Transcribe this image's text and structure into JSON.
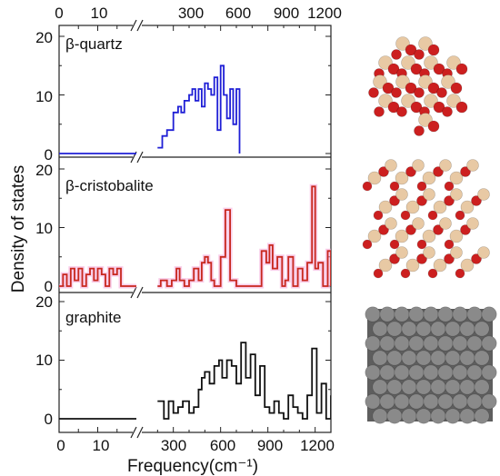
{
  "figure": {
    "ylabel": "Density of states",
    "xlabel": "Frequency(cm⁻¹)",
    "top_ticks_low": [
      "0",
      "10"
    ],
    "top_ticks_high": [
      "300",
      "600",
      "900",
      "1200"
    ],
    "bottom_ticks_low": [
      "0",
      "10"
    ],
    "bottom_ticks_high": [
      "300",
      "600",
      "900",
      "1200"
    ],
    "y_ticks": [
      "0",
      "10",
      "20"
    ]
  },
  "colors": {
    "beta_quartz": "#1f1fd6",
    "beta_cristobalite": "#c8281e",
    "beta_cristobalite_glow": "#f4a6d8",
    "graphite": "#111111",
    "oxygen_atom": "#cc1f1f",
    "silicon_atom": "#e8c9a4",
    "carbon_atom": "#8a8a8a"
  },
  "chart_data": [
    {
      "type": "line",
      "title": "β-quartz",
      "x_axis": "broken: 0–20 then 100–1300 cm⁻¹",
      "ylim": [
        0,
        22
      ],
      "series": [
        {
          "name": "β-quartz",
          "x_low": [
            0,
            20
          ],
          "y_low": [
            0,
            0
          ],
          "x": [
            200,
            230,
            260,
            300,
            330,
            350,
            370,
            400,
            420,
            440,
            460,
            480,
            500,
            520,
            540,
            560,
            580,
            600,
            620,
            640,
            660,
            680,
            700,
            720
          ],
          "y": [
            1,
            3,
            4,
            7,
            8,
            7,
            9,
            10,
            11,
            9,
            11,
            8,
            12,
            11,
            10,
            13,
            4,
            15,
            10,
            6,
            11,
            5,
            11,
            0
          ]
        }
      ]
    },
    {
      "type": "line",
      "title": "β-cristobalite",
      "x_axis": "broken: 0–20 then 100–1300 cm⁻¹",
      "ylim": [
        0,
        22
      ],
      "series": [
        {
          "name": "β-cristobalite",
          "x_low": [
            0,
            1,
            2,
            3,
            4,
            5,
            6,
            7,
            8,
            9,
            10,
            11,
            12,
            13,
            14,
            15,
            16,
            20
          ],
          "y_low": [
            0,
            2,
            0,
            3,
            1,
            3,
            0,
            2,
            3,
            1,
            3,
            2,
            0,
            3,
            2,
            3,
            0,
            0
          ],
          "x": [
            200,
            220,
            260,
            290,
            320,
            340,
            370,
            400,
            430,
            460,
            480,
            500,
            520,
            540,
            560,
            600,
            630,
            660,
            700,
            740,
            800,
            860,
            890,
            910,
            930,
            960,
            990,
            1010,
            1030,
            1060,
            1090,
            1120,
            1150,
            1180,
            1200,
            1220,
            1250,
            1280,
            1300
          ],
          "y": [
            0,
            1,
            0,
            1,
            3,
            1,
            0,
            1,
            3,
            1,
            4,
            5,
            4,
            1,
            0,
            5,
            13,
            1,
            0,
            0,
            0,
            6,
            4,
            7,
            3,
            5,
            0,
            1,
            5,
            0,
            3,
            1,
            4,
            17,
            3,
            4,
            0,
            6,
            0
          ]
        }
      ]
    },
    {
      "type": "line",
      "title": "graphite",
      "x_axis": "broken: 0–20 then 100–1300 cm⁻¹",
      "ylim": [
        0,
        22
      ],
      "series": [
        {
          "name": "graphite",
          "x_low": [
            0,
            20
          ],
          "y_low": [
            0,
            0
          ],
          "x": [
            200,
            240,
            270,
            300,
            330,
            360,
            400,
            430,
            460,
            480,
            500,
            530,
            560,
            590,
            610,
            640,
            670,
            700,
            730,
            760,
            790,
            820,
            850,
            880,
            910,
            940,
            970,
            1000,
            1030,
            1060,
            1090,
            1120,
            1150,
            1180,
            1210,
            1240,
            1270,
            1300
          ],
          "y": [
            3,
            0,
            3,
            1,
            2,
            3,
            1,
            2,
            5,
            7,
            8,
            6,
            9,
            10,
            7,
            10,
            9,
            6,
            13,
            7,
            11,
            4,
            9,
            2,
            1,
            3,
            1,
            0,
            4,
            2,
            1,
            0,
            4,
            12,
            1,
            6,
            0,
            4
          ]
        }
      ]
    }
  ],
  "structures": [
    {
      "name": "β-quartz structure"
    },
    {
      "name": "β-cristobalite structure"
    },
    {
      "name": "graphite structure"
    }
  ]
}
